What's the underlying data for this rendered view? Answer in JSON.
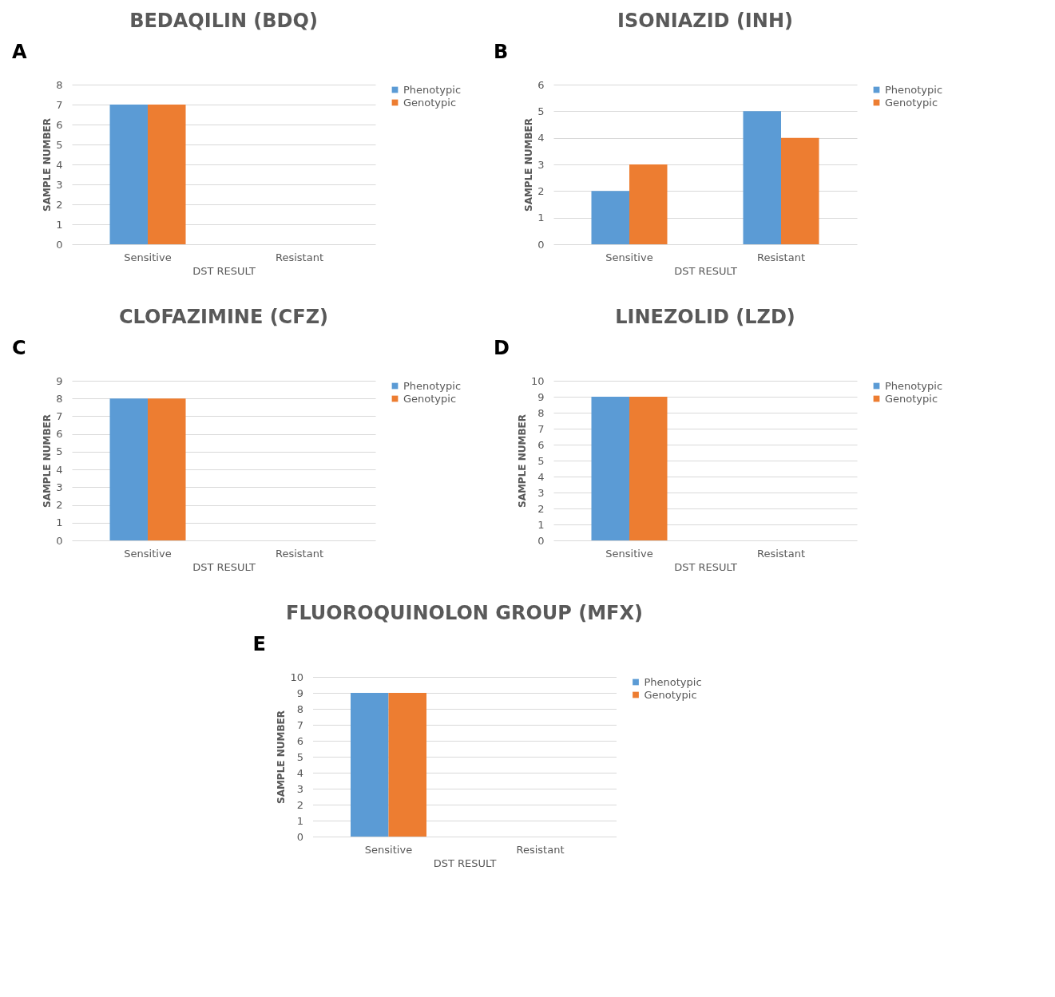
{
  "chart_data": [
    {
      "type": "bar",
      "title": "BEDAQILIN (BDQ)",
      "annotations": [
        "A"
      ],
      "xlabel": "DST RESULT",
      "ylabel": "SAMPLE NUMBER",
      "categories": [
        "Sensitive",
        "Resistant"
      ],
      "series": [
        {
          "name": "Phenotypic",
          "color": "#5b9bd5",
          "values": [
            7,
            0
          ]
        },
        {
          "name": "Genotypic",
          "color": "#ed7d31",
          "values": [
            7,
            0
          ]
        }
      ],
      "ylim": [
        0,
        8
      ],
      "yticks": [
        0,
        1,
        2,
        3,
        4,
        5,
        6,
        7,
        8
      ],
      "grid": "y",
      "legend": "right"
    },
    {
      "type": "bar",
      "title": "ISONIAZID (INH)",
      "annotations": [
        "B"
      ],
      "xlabel": "DST RESULT",
      "ylabel": "SAMPLE NUMBER",
      "categories": [
        "Sensitive",
        "Resistant"
      ],
      "series": [
        {
          "name": "Phenotypic",
          "color": "#5b9bd5",
          "values": [
            2,
            5
          ]
        },
        {
          "name": "Genotypic",
          "color": "#ed7d31",
          "values": [
            3,
            4
          ]
        }
      ],
      "ylim": [
        0,
        6
      ],
      "yticks": [
        0,
        1,
        2,
        3,
        4,
        5,
        6
      ],
      "grid": "y",
      "legend": "right"
    },
    {
      "type": "bar",
      "title": "CLOFAZIMINE (CFZ)",
      "annotations": [
        "C"
      ],
      "xlabel": "DST RESULT",
      "ylabel": "SAMPLE NUMBER",
      "categories": [
        "Sensitive",
        "Resistant"
      ],
      "series": [
        {
          "name": "Phenotypic",
          "color": "#5b9bd5",
          "values": [
            8,
            0
          ]
        },
        {
          "name": "Genotypic",
          "color": "#ed7d31",
          "values": [
            8,
            0
          ]
        }
      ],
      "ylim": [
        0,
        9
      ],
      "yticks": [
        0,
        1,
        2,
        3,
        4,
        5,
        6,
        7,
        8,
        9
      ],
      "grid": "y",
      "legend": "right"
    },
    {
      "type": "bar",
      "title": "LINEZOLID (LZD)",
      "annotations": [
        "D"
      ],
      "xlabel": "DST RESULT",
      "ylabel": "SAMPLE NUMBER",
      "categories": [
        "Sensitive",
        "Resistant"
      ],
      "series": [
        {
          "name": "Phenotypic",
          "color": "#5b9bd5",
          "values": [
            9,
            0
          ]
        },
        {
          "name": "Genotypic",
          "color": "#ed7d31",
          "values": [
            9,
            0
          ]
        }
      ],
      "ylim": [
        0,
        10
      ],
      "yticks": [
        0,
        1,
        2,
        3,
        4,
        5,
        6,
        7,
        8,
        9,
        10
      ],
      "grid": "y",
      "legend": "right"
    },
    {
      "type": "bar",
      "title": "FLUOROQUINOLON GROUP (MFX)",
      "annotations": [
        "E"
      ],
      "xlabel": "DST RESULT",
      "ylabel": "SAMPLE NUMBER",
      "categories": [
        "Sensitive",
        "Resistant"
      ],
      "series": [
        {
          "name": "Phenotypic",
          "color": "#5b9bd5",
          "values": [
            9,
            0
          ]
        },
        {
          "name": "Genotypic",
          "color": "#ed7d31",
          "values": [
            9,
            0
          ]
        }
      ],
      "ylim": [
        0,
        10
      ],
      "yticks": [
        0,
        1,
        2,
        3,
        4,
        5,
        6,
        7,
        8,
        9,
        10
      ],
      "grid": "y",
      "legend": "right"
    }
  ]
}
